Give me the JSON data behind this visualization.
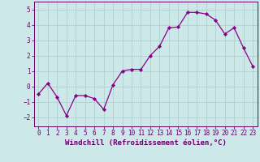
{
  "x": [
    0,
    1,
    2,
    3,
    4,
    5,
    6,
    7,
    8,
    9,
    10,
    11,
    12,
    13,
    14,
    15,
    16,
    17,
    18,
    19,
    20,
    21,
    22,
    23
  ],
  "y": [
    -0.5,
    0.2,
    -0.7,
    -1.9,
    -0.6,
    -0.6,
    -0.8,
    -1.5,
    0.1,
    1.0,
    1.1,
    1.1,
    2.0,
    2.6,
    3.8,
    3.85,
    4.8,
    4.8,
    4.7,
    4.3,
    3.4,
    3.8,
    2.5,
    1.3
  ],
  "line_color": "#880088",
  "marker_color": "#880088",
  "bg_color": "#cce8e8",
  "grid_color": "#aacccc",
  "axis_label_color": "#660066",
  "tick_color": "#660066",
  "border_color": "#660066",
  "xlabel": "Windchill (Refroidissement éolien,°C)",
  "xlim": [
    -0.5,
    23.5
  ],
  "ylim": [
    -2.6,
    5.5
  ],
  "yticks": [
    -2,
    -1,
    0,
    1,
    2,
    3,
    4,
    5
  ],
  "xticks": [
    0,
    1,
    2,
    3,
    4,
    5,
    6,
    7,
    8,
    9,
    10,
    11,
    12,
    13,
    14,
    15,
    16,
    17,
    18,
    19,
    20,
    21,
    22,
    23
  ],
  "tick_fontsize": 5.5,
  "label_fontsize": 6.5,
  "linewidth": 0.9,
  "markersize": 2.2
}
